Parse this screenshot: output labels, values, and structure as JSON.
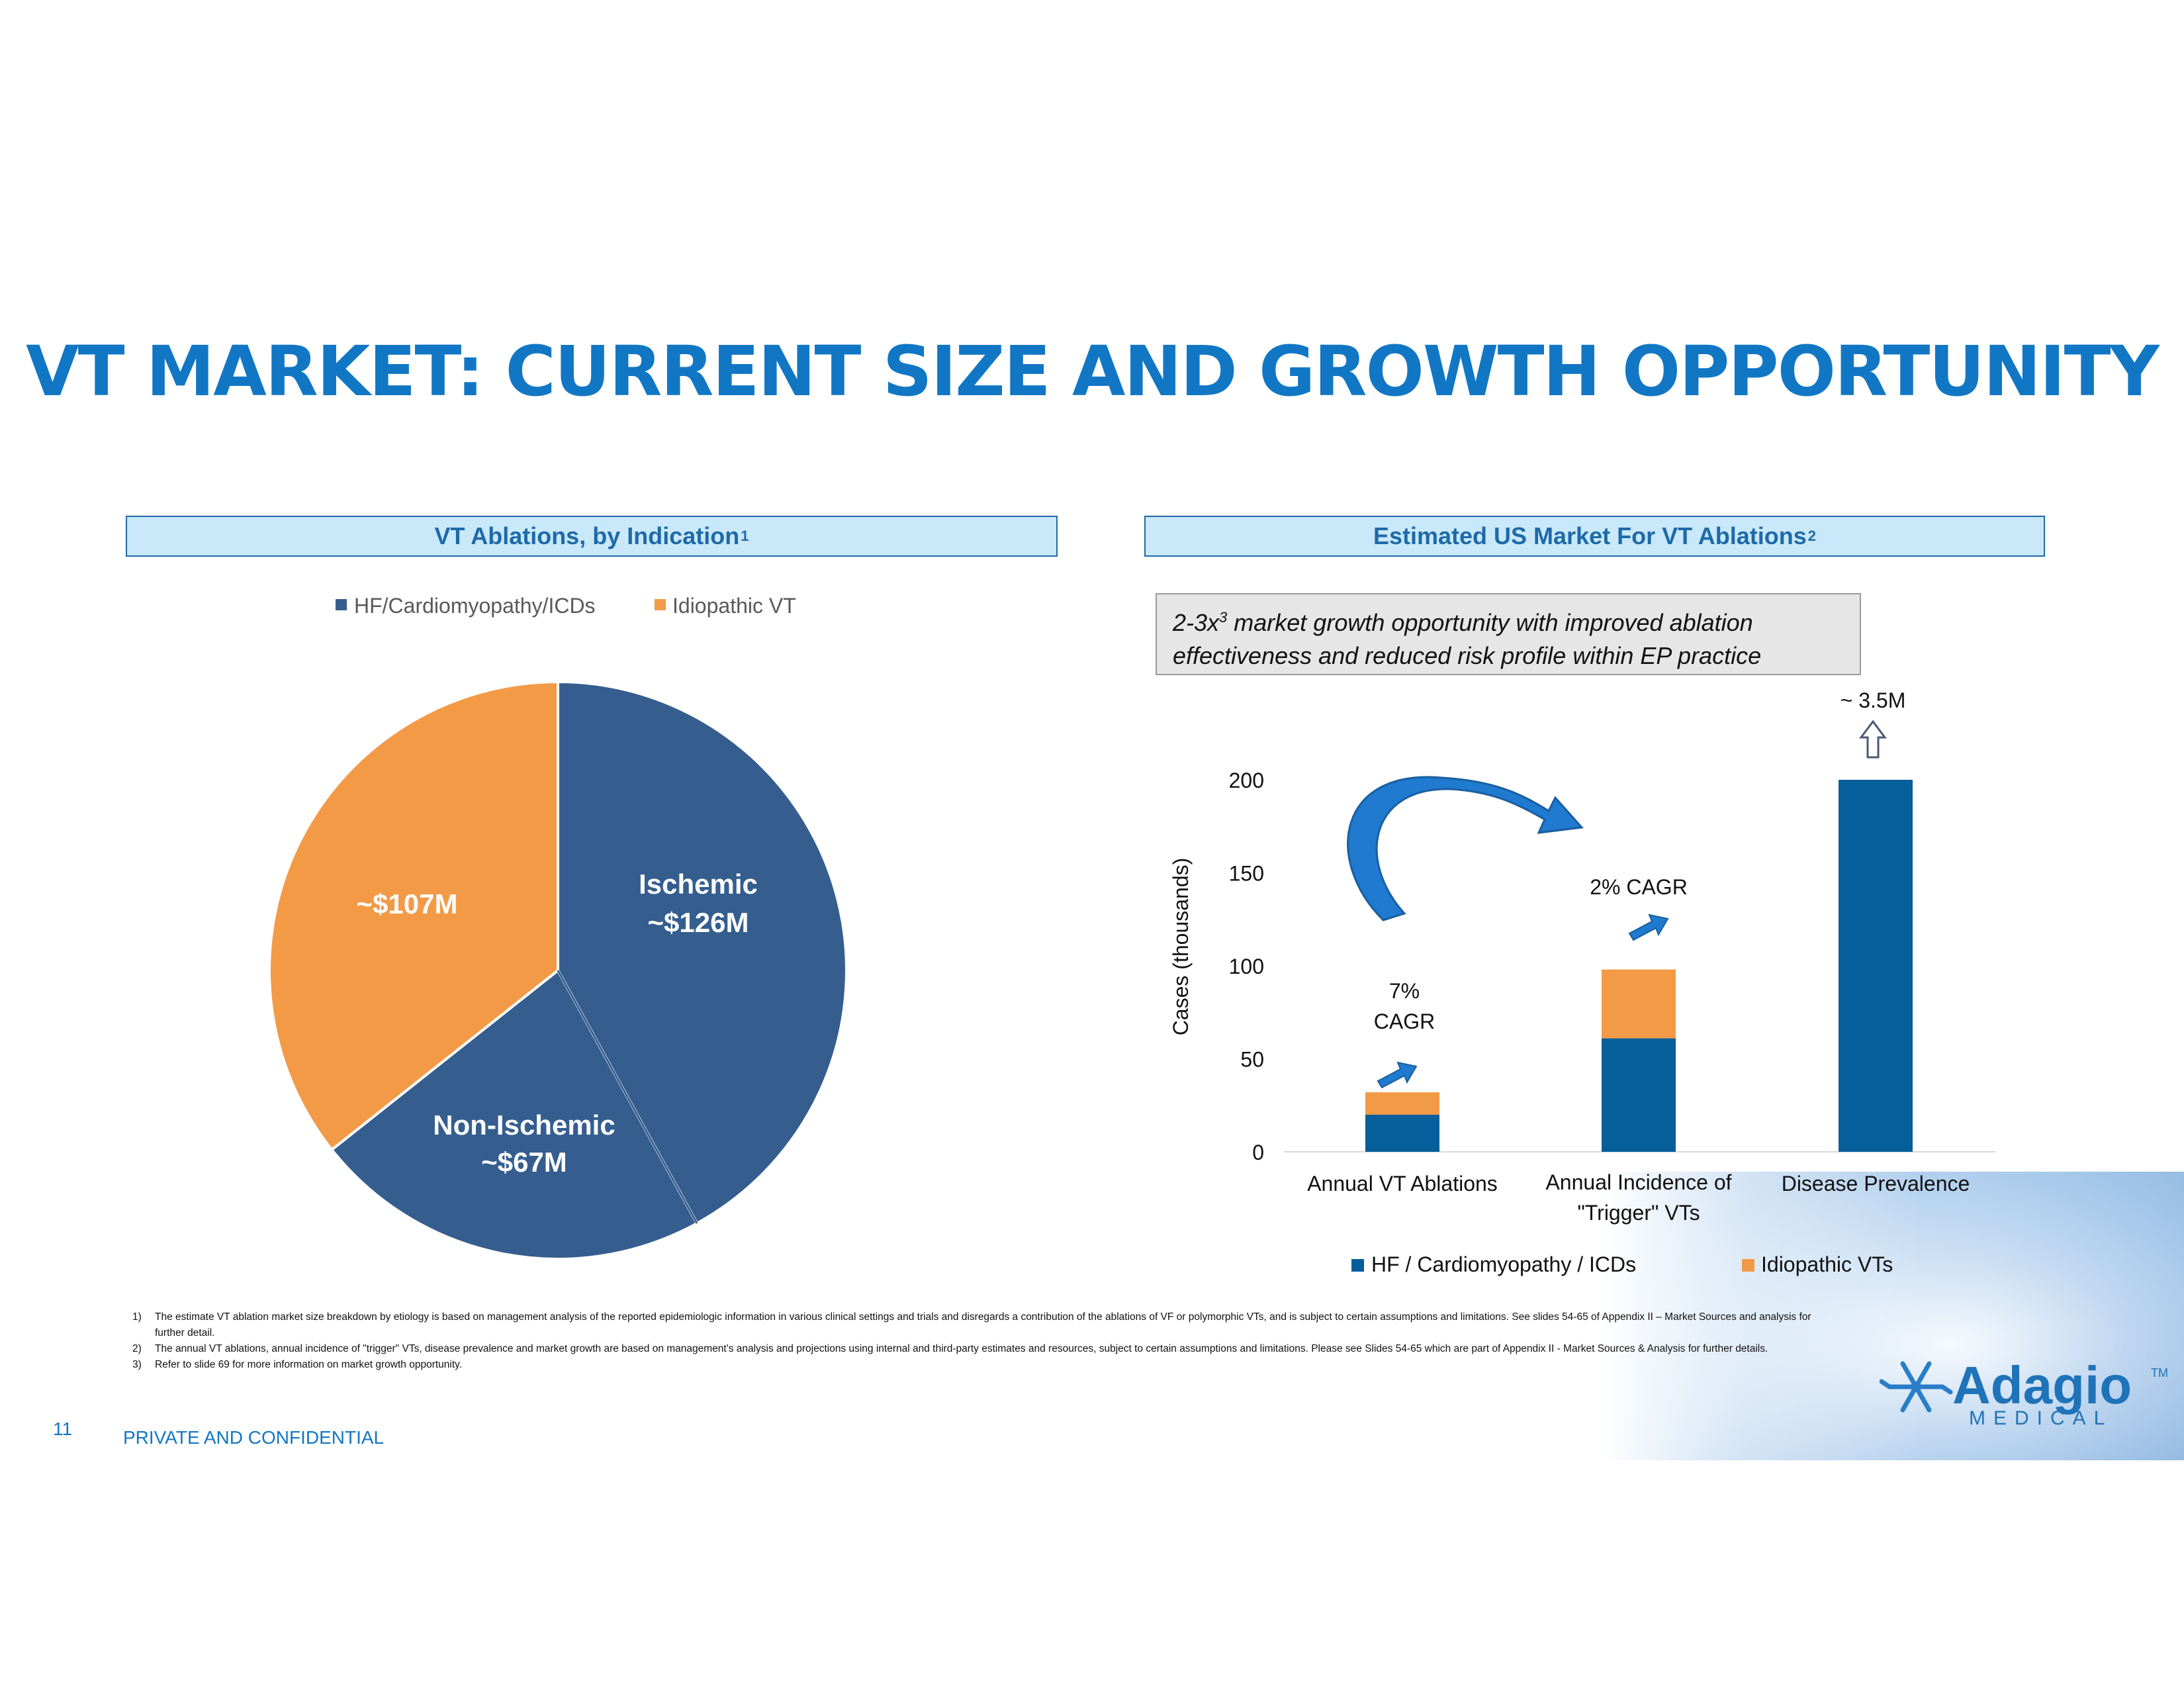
{
  "title": "VT MARKET: CURRENT SIZE AND GROWTH OPPORTUNITY",
  "left_section": {
    "header": "VT Ablations, by Indication",
    "header_sup": "1"
  },
  "right_section": {
    "header": "Estimated US Market For VT Ablations",
    "header_sup": "2"
  },
  "callout": {
    "prefix": "2-3x",
    "sup": "3",
    "text": " market growth opportunity with improved ablation effectiveness and reduced risk profile within EP practice"
  },
  "colors": {
    "title": "#1177c4",
    "pie_blue": "#355e8f",
    "pie_orange": "#f39a47",
    "bar_blue": "#065e9a",
    "bar_orange": "#f39a47",
    "header_bg": "#c9e9fb",
    "arrow_blue": "#1f7ad0"
  },
  "chart_data": [
    {
      "type": "pie",
      "legend": [
        "HF/Cardiomyopathy/ICDs",
        "Idiopathic VT"
      ],
      "legend_position": "top",
      "slices": [
        {
          "label": "Ischemic",
          "value_label": "~$126M",
          "value": 126,
          "series": "HF/Cardiomyopathy/ICDs"
        },
        {
          "label": "Non-Ischemic",
          "value_label": "~$67M",
          "value": 67,
          "series": "HF/Cardiomyopathy/ICDs"
        },
        {
          "label": "",
          "value_label": "~$107M",
          "value": 107,
          "series": "Idiopathic VT"
        }
      ]
    },
    {
      "type": "bar",
      "stacked": true,
      "categories": [
        "Annual VT Ablations",
        "Annual Incidence of \"Trigger\" VTs",
        "Disease Prevalence"
      ],
      "series": [
        {
          "name": "HF / Cardiomyopathy / ICDs",
          "values": [
            20,
            61,
            200
          ]
        },
        {
          "name": "Idiopathic VTs",
          "values": [
            12,
            37,
            0
          ]
        }
      ],
      "ylabel": "Cases (thousands)",
      "ylim": [
        0,
        200
      ],
      "yticks": [
        "0",
        "50",
        "100",
        "150",
        "200"
      ],
      "legend_position": "bottom",
      "annotations": {
        "cagr_1": "7%\nCAGR",
        "cagr_2": "2% CAGR",
        "prevalence": "~ 3.5M"
      }
    }
  ],
  "footnotes": [
    {
      "num": "1)",
      "text": "The estimate VT ablation market size breakdown by etiology is based on management analysis of the reported epidemiologic information in various clinical settings and trials and disregards a contribution of the ablations of VF or polymorphic VTs, and is subject to certain assumptions and limitations. See slides 54-65 of Appendix II – Market Sources and analysis for further detail."
    },
    {
      "num": "2)",
      "text": "The annual VT ablations, annual incidence of \"trigger\" VTs, disease prevalence and market growth are based on management's analysis and projections using internal and third-party estimates and resources, subject to certain assumptions and limitations. Please see Slides 54-65 which are part of Appendix II - Market Sources & Analysis for further details."
    },
    {
      "num": "3)",
      "text": "Refer to  slide 69 for more information on market growth opportunity."
    }
  ],
  "page_number": "11",
  "confidential": "PRIVATE AND CONFIDENTIAL",
  "logo": {
    "name": "Adagio",
    "tm": "TM",
    "sub": "MEDICAL"
  }
}
